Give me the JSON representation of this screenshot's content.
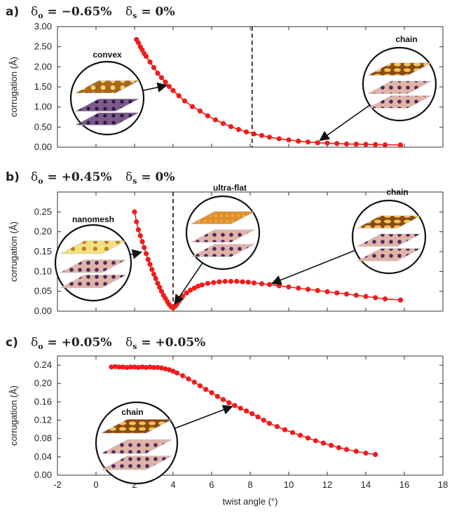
{
  "chart_data": [
    {
      "type": "scatter",
      "panel_label": "a)",
      "title_parts": {
        "d1_sym": "δ",
        "d1_sub": "o",
        "d1_val": " = −0.65%",
        "d2_sym": "δ",
        "d2_sub": "s",
        "d2_val": " = 0%"
      },
      "ylabel": "corrugation (Å)",
      "xlim": [
        -2,
        18
      ],
      "ylim": [
        0,
        3
      ],
      "yticks": [
        "0.00",
        "0.50",
        "1.00",
        "1.50",
        "2.00",
        "2.50",
        "3.00"
      ],
      "yticks_values": [
        0,
        0.5,
        1.0,
        1.5,
        2.0,
        2.5,
        3.0
      ],
      "show_xticks": false,
      "vline_x": 8.1,
      "series": [
        {
          "x": [
            2.1,
            2.2,
            2.3,
            2.4,
            2.5,
            2.6,
            2.8,
            3.0,
            3.2,
            3.4,
            3.6,
            3.8,
            4.0,
            4.3,
            4.6,
            5.0,
            5.4,
            5.8,
            6.2,
            6.6,
            7.0,
            7.4,
            7.8,
            8.2,
            8.6,
            9.0,
            9.5,
            10.0,
            10.5,
            11.0,
            11.5,
            12.0,
            12.5,
            13.0,
            13.5,
            14.0,
            14.5,
            15.0,
            15.8
          ],
          "y": [
            2.68,
            2.6,
            2.5,
            2.42,
            2.33,
            2.26,
            2.12,
            1.98,
            1.84,
            1.73,
            1.62,
            1.51,
            1.41,
            1.28,
            1.15,
            1.01,
            0.9,
            0.78,
            0.68,
            0.59,
            0.51,
            0.44,
            0.38,
            0.33,
            0.29,
            0.25,
            0.21,
            0.18,
            0.15,
            0.13,
            0.11,
            0.1,
            0.09,
            0.08,
            0.075,
            0.07,
            0.065,
            0.06,
            0.055
          ]
        }
      ],
      "insets": [
        {
          "label": "convex",
          "kind": "convex",
          "arrow_to": [
            3.8,
            1.55
          ]
        },
        {
          "label": "chain",
          "kind": "chain",
          "arrow_to": [
            11.5,
            0.13
          ]
        }
      ]
    },
    {
      "type": "scatter",
      "panel_label": "b)",
      "title_parts": {
        "d1_sym": "δ",
        "d1_sub": "o",
        "d1_val": " = +0.45%",
        "d2_sym": "δ",
        "d2_sub": "s",
        "d2_val": " = 0%"
      },
      "ylabel": "corrugation (Å)",
      "xlim": [
        -2,
        18
      ],
      "ylim": [
        0,
        0.3
      ],
      "yticks": [
        "0.00",
        "0.05",
        "0.10",
        "0.15",
        "0.20",
        "0.25"
      ],
      "yticks_values": [
        0,
        0.05,
        0.1,
        0.15,
        0.2,
        0.25
      ],
      "show_xticks": false,
      "vline_x": 4.0,
      "series": [
        {
          "x": [
            2.0,
            2.1,
            2.2,
            2.3,
            2.4,
            2.5,
            2.6,
            2.7,
            2.8,
            2.9,
            3.0,
            3.1,
            3.2,
            3.3,
            3.4,
            3.5,
            3.6,
            3.7,
            3.8,
            3.9,
            4.0,
            4.1,
            4.2,
            4.3,
            4.4,
            4.5,
            4.7,
            4.9,
            5.1,
            5.3,
            5.5,
            5.8,
            6.1,
            6.4,
            6.7,
            7.0,
            7.3,
            7.6,
            7.9,
            8.2,
            8.6,
            9.0,
            9.5,
            10.0,
            10.5,
            11.0,
            11.5,
            12.0,
            12.5,
            13.0,
            13.5,
            14.0,
            14.5,
            15.0,
            15.8
          ],
          "y": [
            0.25,
            0.225,
            0.205,
            0.19,
            0.175,
            0.16,
            0.145,
            0.13,
            0.118,
            0.105,
            0.093,
            0.082,
            0.07,
            0.06,
            0.05,
            0.04,
            0.032,
            0.024,
            0.017,
            0.011,
            0.008,
            0.012,
            0.018,
            0.025,
            0.032,
            0.038,
            0.046,
            0.053,
            0.058,
            0.063,
            0.066,
            0.07,
            0.072,
            0.074,
            0.075,
            0.075,
            0.075,
            0.074,
            0.073,
            0.071,
            0.069,
            0.067,
            0.064,
            0.061,
            0.058,
            0.055,
            0.052,
            0.049,
            0.046,
            0.043,
            0.04,
            0.037,
            0.034,
            0.031,
            0.028
          ]
        }
      ],
      "insets": [
        {
          "label": "nanomesh",
          "kind": "nanomesh",
          "arrow_to": [
            2.5,
            0.15
          ]
        },
        {
          "label": "ultra-flat",
          "kind": "flat",
          "arrow_to": [
            4.0,
            0.012
          ]
        },
        {
          "label": "chain",
          "kind": "chain",
          "arrow_to": [
            9.0,
            0.067
          ]
        }
      ]
    },
    {
      "type": "scatter",
      "panel_label": "c)",
      "title_parts": {
        "d1_sym": "δ",
        "d1_sub": "o",
        "d1_val": " = +0.05%",
        "d2_sym": "δ",
        "d2_sub": "s",
        "d2_val": " = +0.05%"
      },
      "ylabel": "corrugation (Å)",
      "xlabel": "twist angle (°)",
      "xlim": [
        -2,
        18
      ],
      "ylim": [
        0,
        0.26
      ],
      "yticks": [
        "0.00",
        "0.04",
        "0.08",
        "0.12",
        "0.16",
        "0.20",
        "0.24"
      ],
      "yticks_values": [
        0,
        0.04,
        0.08,
        0.12,
        0.16,
        0.2,
        0.24
      ],
      "xticks": [
        "-2",
        "0",
        "2",
        "4",
        "6",
        "8",
        "10",
        "12",
        "14",
        "16",
        "18"
      ],
      "xticks_values": [
        -2,
        0,
        2,
        4,
        6,
        8,
        10,
        12,
        14,
        16,
        18
      ],
      "show_xticks": true,
      "series": [
        {
          "x": [
            0.8,
            1.0,
            1.2,
            1.4,
            1.6,
            1.8,
            2.0,
            2.2,
            2.4,
            2.6,
            2.8,
            3.0,
            3.2,
            3.4,
            3.6,
            3.8,
            4.0,
            4.2,
            4.5,
            4.8,
            5.1,
            5.4,
            5.7,
            6.0,
            6.3,
            6.6,
            6.9,
            7.2,
            7.5,
            7.8,
            8.1,
            8.4,
            8.7,
            9.0,
            9.4,
            9.8,
            10.2,
            10.6,
            11.0,
            11.4,
            11.8,
            12.2,
            12.6,
            13.0,
            13.5,
            14.0,
            14.5
          ],
          "y": [
            0.236,
            0.237,
            0.236,
            0.236,
            0.235,
            0.236,
            0.236,
            0.235,
            0.236,
            0.235,
            0.236,
            0.235,
            0.235,
            0.234,
            0.232,
            0.23,
            0.227,
            0.223,
            0.217,
            0.21,
            0.203,
            0.195,
            0.187,
            0.18,
            0.172,
            0.165,
            0.158,
            0.152,
            0.146,
            0.14,
            0.134,
            0.127,
            0.12,
            0.113,
            0.106,
            0.099,
            0.093,
            0.087,
            0.081,
            0.075,
            0.07,
            0.065,
            0.06,
            0.056,
            0.052,
            0.048,
            0.045
          ]
        }
      ],
      "insets": [
        {
          "label": "chain",
          "kind": "chain",
          "arrow_to": [
            7.2,
            0.152
          ]
        }
      ]
    }
  ]
}
